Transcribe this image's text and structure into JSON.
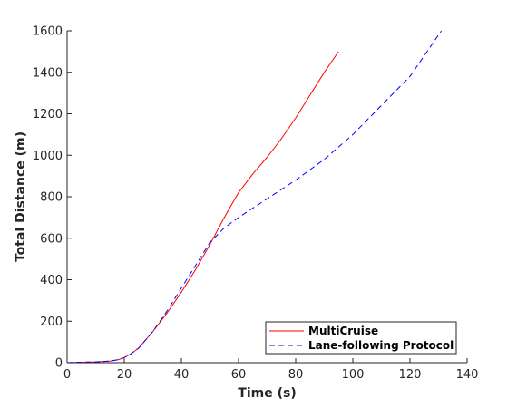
{
  "chart_data": {
    "type": "line",
    "xlabel": "Time (s)",
    "ylabel": "Total Distance (m)",
    "xlim": [
      0,
      140
    ],
    "ylim": [
      0,
      1600
    ],
    "xticks": [
      0,
      20,
      40,
      60,
      80,
      100,
      120,
      140
    ],
    "yticks": [
      0,
      200,
      400,
      600,
      800,
      1000,
      1200,
      1400,
      1600
    ],
    "grid": false,
    "legend_position": "bottom-right",
    "series": [
      {
        "name": "MultiCruise",
        "color": "#ff0000",
        "style": "solid",
        "x": [
          0,
          5,
          10,
          15,
          18,
          20,
          22,
          25,
          30,
          35,
          40,
          45,
          50,
          55,
          60,
          65,
          70,
          75,
          80,
          85,
          90,
          95
        ],
        "y": [
          0,
          2,
          4,
          8,
          15,
          25,
          40,
          70,
          150,
          240,
          340,
          450,
          570,
          700,
          820,
          910,
          990,
          1080,
          1180,
          1290,
          1400,
          1500
        ]
      },
      {
        "name": "Lane-following Protocol",
        "color": "#0000ff",
        "style": "dashed",
        "x": [
          0,
          5,
          10,
          15,
          18,
          20,
          22,
          25,
          30,
          35,
          40,
          45,
          50,
          55,
          60,
          70,
          80,
          90,
          100,
          110,
          120,
          131
        ],
        "y": [
          0,
          2,
          4,
          8,
          15,
          25,
          40,
          70,
          150,
          250,
          360,
          470,
          580,
          650,
          700,
          790,
          880,
          980,
          1100,
          1240,
          1380,
          1600
        ]
      }
    ]
  }
}
